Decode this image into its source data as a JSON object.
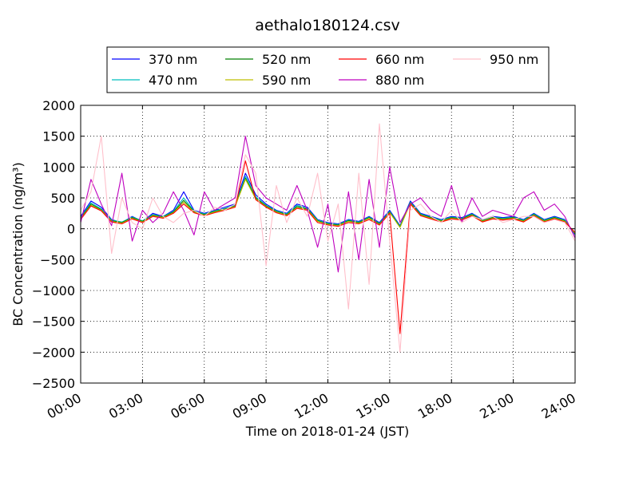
{
  "chart_data": {
    "type": "line",
    "title": "aethalo180124.csv",
    "xlabel": "Time on 2018-01-24 (JST)",
    "ylabel": "BC Concentration (ng/m³)",
    "xlim": [
      0,
      24
    ],
    "ylim": [
      -2500,
      2000
    ],
    "x_ticks": [
      0,
      3,
      6,
      9,
      12,
      15,
      18,
      21,
      24
    ],
    "x_tick_labels": [
      "00:00",
      "03:00",
      "06:00",
      "09:00",
      "12:00",
      "15:00",
      "18:00",
      "21:00",
      "24:00"
    ],
    "y_ticks": [
      2000,
      1500,
      1000,
      500,
      0,
      -500,
      -1000,
      -1500,
      -2000,
      -2500
    ],
    "y_tick_labels": [
      "2000",
      "1500",
      "1000",
      "500",
      "0",
      "−500",
      "−1000",
      "−1500",
      "−2000",
      "−2500"
    ],
    "grid": true,
    "legend_position": "top (above plot, 4 columns)",
    "x": [
      0,
      0.5,
      1,
      1.5,
      2,
      2.5,
      3,
      3.5,
      4,
      4.5,
      5,
      5.5,
      6,
      6.5,
      7,
      7.5,
      8,
      8.5,
      9,
      9.5,
      10,
      10.5,
      11,
      11.5,
      12,
      12.5,
      13,
      13.5,
      14,
      14.5,
      15,
      15.5,
      16,
      16.5,
      17,
      17.5,
      18,
      18.5,
      19,
      19.5,
      20,
      20.5,
      21,
      21.5,
      22,
      22.5,
      23,
      23.5,
      24
    ],
    "series": [
      {
        "name": "370 nm",
        "color": "#0000ff",
        "values": [
          200,
          450,
          350,
          150,
          100,
          200,
          120,
          250,
          200,
          300,
          600,
          300,
          250,
          300,
          350,
          400,
          900,
          550,
          400,
          300,
          250,
          400,
          350,
          150,
          100,
          80,
          150,
          120,
          200,
          100,
          300,
          50,
          450,
          250,
          200,
          150,
          200,
          180,
          250,
          150,
          200,
          180,
          200,
          150,
          250,
          150,
          200,
          150,
          -100
        ]
      },
      {
        "name": "470 nm",
        "color": "#00bfbf",
        "values": [
          180,
          420,
          320,
          140,
          110,
          190,
          130,
          230,
          200,
          280,
          500,
          290,
          240,
          290,
          330,
          380,
          850,
          520,
          380,
          290,
          240,
          380,
          330,
          140,
          90,
          70,
          140,
          110,
          190,
          90,
          280,
          40,
          430,
          240,
          190,
          140,
          190,
          170,
          240,
          140,
          190,
          170,
          190,
          140,
          240,
          140,
          190,
          140,
          -90
        ]
      },
      {
        "name": "520 nm",
        "color": "#008000",
        "values": [
          170,
          400,
          310,
          130,
          100,
          180,
          120,
          220,
          190,
          270,
          460,
          280,
          230,
          280,
          320,
          370,
          820,
          500,
          370,
          280,
          230,
          360,
          320,
          130,
          80,
          60,
          130,
          100,
          180,
          80,
          270,
          30,
          420,
          230,
          180,
          130,
          180,
          160,
          230,
          130,
          180,
          160,
          180,
          130,
          230,
          130,
          180,
          130,
          -80
        ]
      },
      {
        "name": "590 nm",
        "color": "#bfbf00",
        "values": [
          160,
          380,
          300,
          120,
          90,
          170,
          110,
          210,
          180,
          260,
          430,
          270,
          220,
          270,
          310,
          360,
          800,
          480,
          360,
          270,
          220,
          340,
          310,
          120,
          70,
          50,
          120,
          90,
          170,
          70,
          260,
          20,
          410,
          220,
          170,
          120,
          170,
          150,
          220,
          120,
          170,
          150,
          170,
          120,
          220,
          120,
          170,
          120,
          -70
        ]
      },
      {
        "name": "660 nm",
        "color": "#ff0000",
        "values": [
          150,
          370,
          290,
          110,
          80,
          160,
          100,
          200,
          170,
          250,
          400,
          260,
          210,
          260,
          300,
          350,
          1100,
          470,
          350,
          260,
          210,
          330,
          300,
          100,
          60,
          40,
          100,
          80,
          150,
          60,
          250,
          -1700,
          400,
          210,
          160,
          110,
          160,
          140,
          210,
          110,
          160,
          140,
          160,
          110,
          210,
          110,
          160,
          110,
          -60
        ]
      },
      {
        "name": "880 nm",
        "color": "#bf00bf",
        "values": [
          100,
          800,
          400,
          50,
          900,
          -200,
          300,
          100,
          250,
          600,
          300,
          -100,
          600,
          300,
          400,
          500,
          1500,
          700,
          500,
          400,
          300,
          700,
          300,
          -300,
          400,
          -700,
          600,
          -500,
          800,
          -300,
          1000,
          100,
          400,
          500,
          300,
          200,
          700,
          100,
          500,
          200,
          300,
          250,
          200,
          500,
          600,
          300,
          400,
          200,
          -150
        ]
      },
      {
        "name": "950 nm",
        "color": "#ffc0cb",
        "values": [
          300,
          600,
          1500,
          -400,
          500,
          100,
          0,
          500,
          200,
          100,
          250,
          300,
          200,
          350,
          300,
          400,
          1200,
          900,
          -600,
          700,
          100,
          500,
          200,
          900,
          -200,
          400,
          -1300,
          900,
          -900,
          1700,
          -200,
          -2000,
          300,
          400,
          200,
          100,
          300,
          100,
          200,
          150,
          200,
          100,
          150,
          200,
          200,
          100,
          150,
          100,
          -200
        ]
      }
    ]
  }
}
